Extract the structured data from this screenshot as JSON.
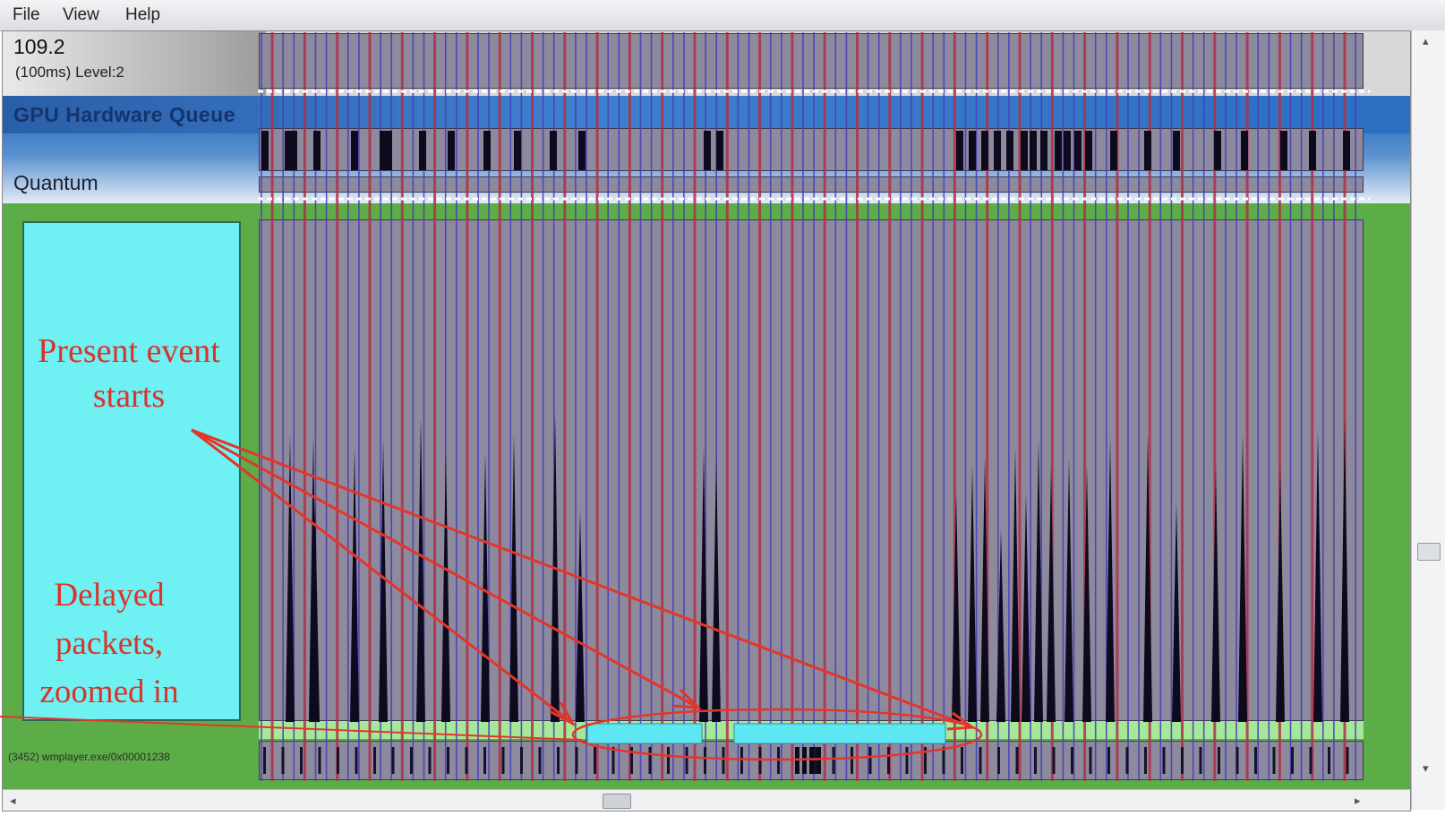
{
  "menu": {
    "file": "File",
    "view": "View",
    "help": "Help"
  },
  "ruler": {
    "value": "109.2",
    "sublabel": "(100ms) Level:2"
  },
  "gpu": {
    "title": "GPU Hardware Queue",
    "quantum": "Quantum"
  },
  "annotations": {
    "present": [
      "Present event",
      "starts"
    ],
    "delayed": [
      "Delayed",
      "packets,",
      "zoomed in"
    ]
  },
  "process": {
    "label": "(3452) wmplayer.exe/0x00001238"
  },
  "colors": {
    "lane": "#8d8a9e",
    "purple_line": "#4a3fb8",
    "red_line": "#b03048",
    "gpu_blue": "#1b63b8",
    "green_bg": "#5cad48",
    "cyan": "#6ff1f3",
    "annotation_red": "#d9342a"
  },
  "icons": {
    "scroll_left": "chevron-left-icon",
    "scroll_right": "chevron-right-icon",
    "scroll_up": "chevron-up-icon",
    "scroll_down": "chevron-down-icon"
  }
}
